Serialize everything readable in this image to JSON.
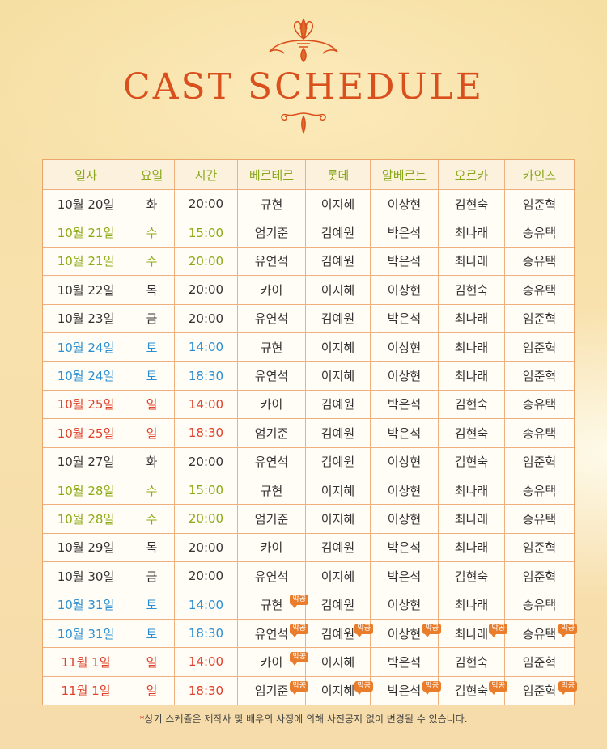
{
  "title": "CAST SCHEDULE",
  "columns": [
    "일자",
    "요일",
    "시간",
    "베르테르",
    "롯데",
    "알베르트",
    "오르카",
    "카인즈"
  ],
  "badge_label": "막공",
  "colors": {
    "weekday": "#333333",
    "wednesday": "#8caa12",
    "saturday": "#2a8fd2",
    "sunday": "#e2402a",
    "accent": "#d9501c",
    "badge": "#e97d2c"
  },
  "rows": [
    {
      "date": "10월 20일",
      "day": "화",
      "time": "20:00",
      "color": "default",
      "cast": [
        "규현",
        "이지혜",
        "이상현",
        "김현숙",
        "임준혁"
      ],
      "last": [
        false,
        false,
        false,
        false,
        false
      ]
    },
    {
      "date": "10월 21일",
      "day": "수",
      "time": "15:00",
      "color": "green",
      "cast": [
        "엄기준",
        "김예원",
        "박은석",
        "최나래",
        "송유택"
      ],
      "last": [
        false,
        false,
        false,
        false,
        false
      ]
    },
    {
      "date": "10월 21일",
      "day": "수",
      "time": "20:00",
      "color": "green",
      "cast": [
        "유연석",
        "김예원",
        "박은석",
        "최나래",
        "송유택"
      ],
      "last": [
        false,
        false,
        false,
        false,
        false
      ]
    },
    {
      "date": "10월 22일",
      "day": "목",
      "time": "20:00",
      "color": "default",
      "cast": [
        "카이",
        "이지혜",
        "이상현",
        "김현숙",
        "송유택"
      ],
      "last": [
        false,
        false,
        false,
        false,
        false
      ]
    },
    {
      "date": "10월 23일",
      "day": "금",
      "time": "20:00",
      "color": "default",
      "cast": [
        "유연석",
        "김예원",
        "박은석",
        "최나래",
        "임준혁"
      ],
      "last": [
        false,
        false,
        false,
        false,
        false
      ]
    },
    {
      "date": "10월 24일",
      "day": "토",
      "time": "14:00",
      "color": "blue",
      "cast": [
        "규현",
        "이지혜",
        "이상현",
        "최나래",
        "임준혁"
      ],
      "last": [
        false,
        false,
        false,
        false,
        false
      ]
    },
    {
      "date": "10월 24일",
      "day": "토",
      "time": "18:30",
      "color": "blue",
      "cast": [
        "유연석",
        "이지혜",
        "이상현",
        "최나래",
        "임준혁"
      ],
      "last": [
        false,
        false,
        false,
        false,
        false
      ]
    },
    {
      "date": "10월 25일",
      "day": "일",
      "time": "14:00",
      "color": "red",
      "cast": [
        "카이",
        "김예원",
        "박은석",
        "김현숙",
        "송유택"
      ],
      "last": [
        false,
        false,
        false,
        false,
        false
      ]
    },
    {
      "date": "10월 25일",
      "day": "일",
      "time": "18:30",
      "color": "red",
      "cast": [
        "엄기준",
        "김예원",
        "박은석",
        "김현숙",
        "송유택"
      ],
      "last": [
        false,
        false,
        false,
        false,
        false
      ]
    },
    {
      "date": "10월 27일",
      "day": "화",
      "time": "20:00",
      "color": "default",
      "cast": [
        "유연석",
        "김예원",
        "이상현",
        "김현숙",
        "임준혁"
      ],
      "last": [
        false,
        false,
        false,
        false,
        false
      ]
    },
    {
      "date": "10월 28일",
      "day": "수",
      "time": "15:00",
      "color": "green",
      "cast": [
        "규현",
        "이지혜",
        "이상현",
        "최나래",
        "송유택"
      ],
      "last": [
        false,
        false,
        false,
        false,
        false
      ]
    },
    {
      "date": "10월 28일",
      "day": "수",
      "time": "20:00",
      "color": "green",
      "cast": [
        "엄기준",
        "이지혜",
        "이상현",
        "최나래",
        "송유택"
      ],
      "last": [
        false,
        false,
        false,
        false,
        false
      ]
    },
    {
      "date": "10월 29일",
      "day": "목",
      "time": "20:00",
      "color": "default",
      "cast": [
        "카이",
        "김예원",
        "박은석",
        "최나래",
        "임준혁"
      ],
      "last": [
        false,
        false,
        false,
        false,
        false
      ]
    },
    {
      "date": "10월 30일",
      "day": "금",
      "time": "20:00",
      "color": "default",
      "cast": [
        "유연석",
        "이지혜",
        "박은석",
        "김현숙",
        "임준혁"
      ],
      "last": [
        false,
        false,
        false,
        false,
        false
      ]
    },
    {
      "date": "10월 31일",
      "day": "토",
      "time": "14:00",
      "color": "blue",
      "cast": [
        "규현",
        "김예원",
        "이상현",
        "최나래",
        "송유택"
      ],
      "last": [
        true,
        false,
        false,
        false,
        false
      ]
    },
    {
      "date": "10월 31일",
      "day": "토",
      "time": "18:30",
      "color": "blue",
      "cast": [
        "유연석",
        "김예원",
        "이상현",
        "최나래",
        "송유택"
      ],
      "last": [
        true,
        true,
        true,
        true,
        true
      ]
    },
    {
      "date": "11월 1일",
      "day": "일",
      "time": "14:00",
      "color": "red",
      "cast": [
        "카이",
        "이지혜",
        "박은석",
        "김현숙",
        "임준혁"
      ],
      "last": [
        true,
        false,
        false,
        false,
        false
      ]
    },
    {
      "date": "11월 1일",
      "day": "일",
      "time": "18:30",
      "color": "red",
      "cast": [
        "엄기준",
        "이지혜",
        "박은석",
        "김현숙",
        "임준혁"
      ],
      "last": [
        true,
        true,
        true,
        true,
        true
      ]
    }
  ],
  "footnote": {
    "star": "*",
    "text": "상기 스케쥴은 제작사 및 배우의 사정에 의해 사전공지 없이 변경될 수 있습니다."
  }
}
